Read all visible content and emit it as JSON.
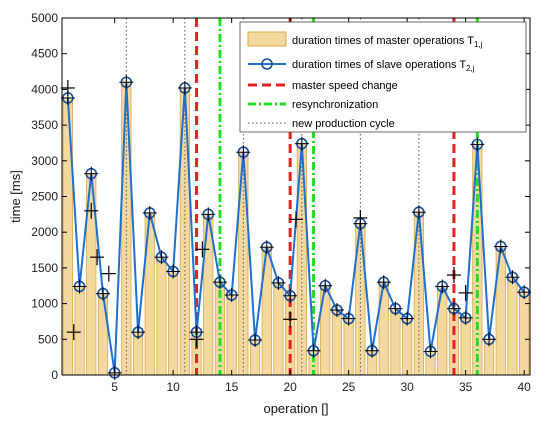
{
  "chart_data": {
    "type": "bar+line",
    "xlabel": "operation []",
    "ylabel": "time [ms]",
    "xlim": [
      0.5,
      40.5
    ],
    "ylim": [
      0,
      5000
    ],
    "xticks": [
      5,
      10,
      15,
      20,
      25,
      30,
      35,
      40
    ],
    "yticks": [
      0,
      500,
      1000,
      1500,
      2000,
      2500,
      3000,
      3500,
      4000,
      4500,
      5000
    ],
    "grid": false,
    "legend_position": "top-right",
    "x": [
      1,
      2,
      3,
      4,
      5,
      6,
      7,
      8,
      9,
      10,
      11,
      12,
      13,
      14,
      15,
      16,
      17,
      18,
      19,
      20,
      21,
      22,
      23,
      24,
      25,
      26,
      27,
      28,
      29,
      30,
      31,
      32,
      33,
      34,
      35,
      36,
      37,
      38,
      39,
      40
    ],
    "series": [
      {
        "name": "duration times of master operations T",
        "name_subscript": "1,j",
        "kind": "bar",
        "color": "#f3d9a0",
        "edge_color": "#d9a84a",
        "values": [
          3880,
          1240,
          2820,
          1140,
          30,
          4100,
          600,
          2270,
          1650,
          1450,
          4020,
          600,
          2250,
          1300,
          1120,
          3120,
          490,
          1790,
          1290,
          1110,
          3240,
          340,
          1250,
          910,
          790,
          2120,
          340,
          1300,
          930,
          790,
          2280,
          330,
          1240,
          930,
          800,
          3230,
          500,
          1800,
          1370,
          1160
        ]
      },
      {
        "name": "duration times of slave operations T",
        "name_subscript": "2,j",
        "kind": "line",
        "color": "#1f6fcc",
        "values": [
          3880,
          1240,
          2820,
          1140,
          30,
          4100,
          600,
          2270,
          1650,
          1450,
          4020,
          600,
          2250,
          1300,
          1120,
          3120,
          490,
          1790,
          1290,
          1110,
          3240,
          340,
          1250,
          910,
          790,
          2120,
          340,
          1300,
          930,
          790,
          2280,
          330,
          1240,
          930,
          800,
          3230,
          500,
          1800,
          1370,
          1160
        ]
      }
    ],
    "master_cross_markers": {
      "x": [
        1,
        1.5,
        3,
        3.5,
        4.5,
        12,
        12.5,
        20,
        20.5,
        26,
        34,
        35
      ],
      "y": [
        4020,
        600,
        2300,
        1650,
        1420,
        500,
        1760,
        780,
        2180,
        2200,
        1400,
        1150
      ]
    },
    "vertical_lines": [
      {
        "name": "master speed change",
        "style": "dashed",
        "color": "#e62020",
        "x": [
          12,
          20,
          34
        ]
      },
      {
        "name": "resynchronization",
        "style": "dashdot",
        "color": "#22dd22",
        "x": [
          14,
          22,
          36
        ]
      },
      {
        "name": "new production cycle",
        "style": "dotted",
        "color": "#555555",
        "x": [
          6,
          11,
          16,
          21,
          26,
          31
        ]
      }
    ]
  }
}
